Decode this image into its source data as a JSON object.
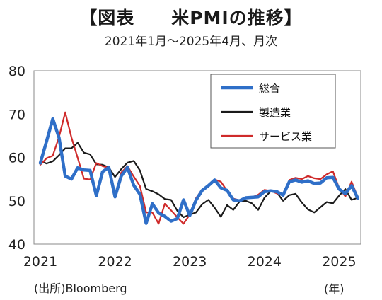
{
  "chart_data": {
    "type": "line",
    "title": "【図表　　米PMIの推移】",
    "subtitle": "2021年1月～2025年4月、月次",
    "source": "(出所)Bloomberg",
    "x_unit": "(年)",
    "ylim": [
      40,
      80
    ],
    "yticks": [
      "40",
      "50",
      "60",
      "70",
      "80"
    ],
    "xticks": [
      "2021",
      "2022",
      "2023",
      "2024",
      "2025"
    ],
    "grid": false,
    "legend_position": "top-right",
    "x": [
      "2021-01",
      "2021-02",
      "2021-03",
      "2021-04",
      "2021-05",
      "2021-06",
      "2021-07",
      "2021-08",
      "2021-09",
      "2021-10",
      "2021-11",
      "2021-12",
      "2022-01",
      "2022-02",
      "2022-03",
      "2022-04",
      "2022-05",
      "2022-06",
      "2022-07",
      "2022-08",
      "2022-09",
      "2022-10",
      "2022-11",
      "2022-12",
      "2023-01",
      "2023-02",
      "2023-03",
      "2023-04",
      "2023-05",
      "2023-06",
      "2023-07",
      "2023-08",
      "2023-09",
      "2023-10",
      "2023-11",
      "2023-12",
      "2024-01",
      "2024-02",
      "2024-03",
      "2024-04",
      "2024-05",
      "2024-06",
      "2024-07",
      "2024-08",
      "2024-09",
      "2024-10",
      "2024-11",
      "2024-12",
      "2025-01",
      "2025-02",
      "2025-03",
      "2025-04"
    ],
    "series": [
      {
        "name": "総合",
        "color": "#2f6fc8",
        "width": 4.5,
        "values": [
          58.7,
          63.7,
          68.9,
          64.6,
          55.7,
          55.0,
          57.6,
          57.1,
          57.0,
          51.2,
          56.7,
          57.7,
          50.9,
          55.7,
          57.7,
          53.6,
          51.5,
          44.8,
          49.3,
          47.2,
          46.4,
          45.3,
          45.9,
          50.2,
          46.6,
          50.1,
          52.4,
          53.5,
          54.8,
          53.0,
          52.4,
          50.2,
          50.0,
          50.7,
          50.8,
          50.9,
          52.1,
          52.3,
          52.1,
          51.3,
          54.4,
          54.8,
          54.3,
          54.6,
          54.0,
          54.1,
          55.3,
          55.4,
          52.7,
          51.6,
          53.5,
          50.6
        ]
      },
      {
        "name": "製造業",
        "color": "#1a1a1a",
        "width": 2.2,
        "values": [
          59.2,
          58.6,
          59.1,
          60.5,
          62.1,
          62.1,
          63.4,
          61.1,
          60.7,
          58.4,
          58.3,
          57.7,
          55.5,
          57.3,
          58.8,
          59.2,
          57.0,
          52.7,
          52.2,
          51.5,
          50.4,
          50.2,
          47.7,
          46.2,
          46.8,
          47.3,
          49.2,
          50.2,
          48.4,
          46.3,
          49.0,
          47.9,
          49.8,
          50.0,
          49.4,
          47.9,
          50.7,
          52.2,
          51.9,
          50.0,
          51.3,
          51.6,
          49.6,
          48.0,
          47.3,
          48.5,
          49.7,
          49.4,
          51.2,
          52.7,
          50.2,
          50.7
        ]
      },
      {
        "name": "サービス業",
        "color": "#cf2a2a",
        "width": 2.2,
        "values": [
          58.3,
          59.8,
          60.4,
          64.7,
          70.4,
          64.6,
          59.9,
          55.1,
          54.9,
          58.7,
          58.0,
          57.6,
          51.2,
          56.5,
          58.0,
          55.6,
          53.4,
          47.3,
          47.3,
          44.7,
          49.3,
          47.8,
          46.2,
          44.7,
          46.8,
          50.6,
          52.6,
          53.6,
          54.9,
          54.4,
          52.3,
          50.5,
          50.1,
          50.6,
          50.8,
          51.4,
          52.5,
          52.3,
          51.7,
          51.3,
          54.8,
          55.3,
          55.0,
          55.7,
          55.2,
          55.0,
          56.1,
          56.8,
          52.9,
          51.0,
          54.4,
          50.8
        ]
      }
    ]
  }
}
